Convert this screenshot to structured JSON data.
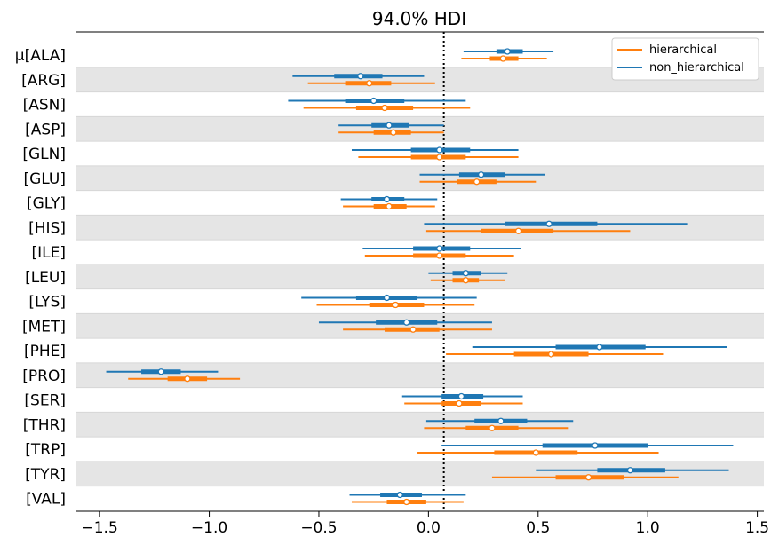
{
  "chart_data": {
    "type": "forest",
    "title": "94.0% HDI",
    "xlim": [
      -1.61,
      1.53
    ],
    "xticks": [
      -1.5,
      -1.0,
      -0.5,
      0.0,
      0.5,
      1.0,
      1.5
    ],
    "xtick_labels": [
      "−1.5",
      "−1.0",
      "−0.5",
      "0.0",
      "0.5",
      "1.0",
      "1.5"
    ],
    "reference_line": 0.07,
    "legend_position": "top-right",
    "categories": [
      "μ[ALA]",
      "[ARG]",
      "[ASN]",
      "[ASP]",
      "[GLN]",
      "[GLU]",
      "[GLY]",
      "[HIS]",
      "[ILE]",
      "[LEU]",
      "[LYS]",
      "[MET]",
      "[PHE]",
      "[PRO]",
      "[SER]",
      "[THR]",
      "[TRP]",
      "[TYR]",
      "[VAL]"
    ],
    "series": [
      {
        "name": "non_hierarchical",
        "color": "#1f77b4",
        "points": [
          {
            "mean": 0.36,
            "hdi": [
              0.16,
              0.57
            ],
            "iqr": [
              0.31,
              0.43
            ]
          },
          {
            "mean": -0.31,
            "hdi": [
              -0.62,
              -0.02
            ],
            "iqr": [
              -0.43,
              -0.21
            ]
          },
          {
            "mean": -0.25,
            "hdi": [
              -0.64,
              0.17
            ],
            "iqr": [
              -0.38,
              -0.11
            ]
          },
          {
            "mean": -0.18,
            "hdi": [
              -0.41,
              0.07
            ],
            "iqr": [
              -0.26,
              -0.09
            ]
          },
          {
            "mean": 0.05,
            "hdi": [
              -0.35,
              0.41
            ],
            "iqr": [
              -0.08,
              0.19
            ]
          },
          {
            "mean": 0.24,
            "hdi": [
              -0.04,
              0.53
            ],
            "iqr": [
              0.14,
              0.35
            ]
          },
          {
            "mean": -0.19,
            "hdi": [
              -0.4,
              0.04
            ],
            "iqr": [
              -0.26,
              -0.11
            ]
          },
          {
            "mean": 0.55,
            "hdi": [
              -0.02,
              1.18
            ],
            "iqr": [
              0.35,
              0.77
            ]
          },
          {
            "mean": 0.05,
            "hdi": [
              -0.3,
              0.42
            ],
            "iqr": [
              -0.07,
              0.19
            ]
          },
          {
            "mean": 0.17,
            "hdi": [
              0.0,
              0.36
            ],
            "iqr": [
              0.11,
              0.24
            ]
          },
          {
            "mean": -0.19,
            "hdi": [
              -0.58,
              0.22
            ],
            "iqr": [
              -0.33,
              -0.05
            ]
          },
          {
            "mean": -0.1,
            "hdi": [
              -0.5,
              0.29
            ],
            "iqr": [
              -0.24,
              0.04
            ]
          },
          {
            "mean": 0.78,
            "hdi": [
              0.2,
              1.36
            ],
            "iqr": [
              0.58,
              0.99
            ]
          },
          {
            "mean": -1.22,
            "hdi": [
              -1.47,
              -0.96
            ],
            "iqr": [
              -1.31,
              -1.13
            ]
          },
          {
            "mean": 0.15,
            "hdi": [
              -0.12,
              0.43
            ],
            "iqr": [
              0.06,
              0.25
            ]
          },
          {
            "mean": 0.33,
            "hdi": [
              -0.01,
              0.66
            ],
            "iqr": [
              0.21,
              0.45
            ]
          },
          {
            "mean": 0.76,
            "hdi": [
              0.06,
              1.39
            ],
            "iqr": [
              0.52,
              1.0
            ]
          },
          {
            "mean": 0.92,
            "hdi": [
              0.49,
              1.37
            ],
            "iqr": [
              0.77,
              1.08
            ]
          },
          {
            "mean": -0.13,
            "hdi": [
              -0.36,
              0.17
            ],
            "iqr": [
              -0.22,
              -0.03
            ]
          }
        ]
      },
      {
        "name": "hierarchical",
        "color": "#ff7f0e",
        "points": [
          {
            "mean": 0.34,
            "hdi": [
              0.15,
              0.54
            ],
            "iqr": [
              0.28,
              0.41
            ]
          },
          {
            "mean": -0.27,
            "hdi": [
              -0.55,
              0.03
            ],
            "iqr": [
              -0.38,
              -0.17
            ]
          },
          {
            "mean": -0.2,
            "hdi": [
              -0.57,
              0.19
            ],
            "iqr": [
              -0.33,
              -0.07
            ]
          },
          {
            "mean": -0.16,
            "hdi": [
              -0.41,
              0.07
            ],
            "iqr": [
              -0.25,
              -0.08
            ]
          },
          {
            "mean": 0.05,
            "hdi": [
              -0.32,
              0.41
            ],
            "iqr": [
              -0.08,
              0.17
            ]
          },
          {
            "mean": 0.22,
            "hdi": [
              -0.04,
              0.49
            ],
            "iqr": [
              0.13,
              0.31
            ]
          },
          {
            "mean": -0.18,
            "hdi": [
              -0.39,
              0.03
            ],
            "iqr": [
              -0.25,
              -0.1
            ]
          },
          {
            "mean": 0.41,
            "hdi": [
              -0.01,
              0.92
            ],
            "iqr": [
              0.24,
              0.57
            ]
          },
          {
            "mean": 0.05,
            "hdi": [
              -0.29,
              0.39
            ],
            "iqr": [
              -0.07,
              0.17
            ]
          },
          {
            "mean": 0.17,
            "hdi": [
              0.01,
              0.35
            ],
            "iqr": [
              0.11,
              0.23
            ]
          },
          {
            "mean": -0.15,
            "hdi": [
              -0.51,
              0.21
            ],
            "iqr": [
              -0.27,
              -0.02
            ]
          },
          {
            "mean": -0.07,
            "hdi": [
              -0.39,
              0.29
            ],
            "iqr": [
              -0.2,
              0.05
            ]
          },
          {
            "mean": 0.56,
            "hdi": [
              0.08,
              1.07
            ],
            "iqr": [
              0.39,
              0.73
            ]
          },
          {
            "mean": -1.1,
            "hdi": [
              -1.37,
              -0.86
            ],
            "iqr": [
              -1.19,
              -1.01
            ]
          },
          {
            "mean": 0.14,
            "hdi": [
              -0.11,
              0.43
            ],
            "iqr": [
              0.06,
              0.24
            ]
          },
          {
            "mean": 0.29,
            "hdi": [
              -0.02,
              0.64
            ],
            "iqr": [
              0.17,
              0.41
            ]
          },
          {
            "mean": 0.49,
            "hdi": [
              -0.05,
              1.05
            ],
            "iqr": [
              0.3,
              0.68
            ]
          },
          {
            "mean": 0.73,
            "hdi": [
              0.29,
              1.14
            ],
            "iqr": [
              0.58,
              0.89
            ]
          },
          {
            "mean": -0.1,
            "hdi": [
              -0.35,
              0.16
            ],
            "iqr": [
              -0.19,
              -0.01
            ]
          }
        ]
      }
    ]
  }
}
